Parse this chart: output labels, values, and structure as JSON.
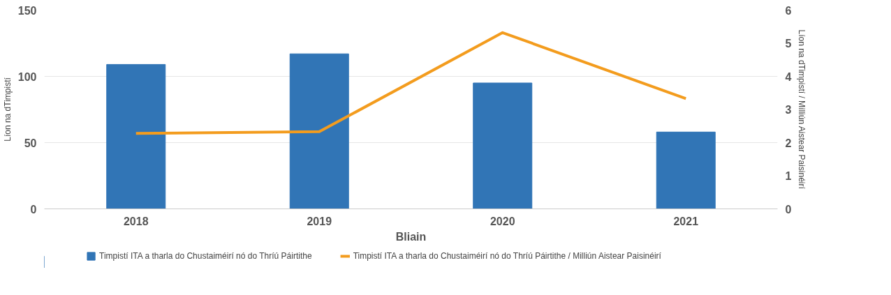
{
  "chart_data": {
    "type": "bar",
    "xlabel": "Bliain",
    "ylabel": "Líon na dTimpistí",
    "y2label": "Líon na dTimpistí / Milliún Aistear Paisinéirí",
    "categories": [
      "2018",
      "2019",
      "2020",
      "2021"
    ],
    "series": [
      {
        "name": "Timpistí ITA a tharla do Chustaiméirí nó do Thríú Páirtithe",
        "color": "#3175b6",
        "values": [
          109,
          117,
          95,
          58
        ]
      },
      {
        "name": "Timpistí ITA a tharla do Chustaiméirí nó do Thríú Páirtithe / Milliún Aistear Paisinéirí",
        "color": "#f39c1e",
        "type": "line",
        "axis": "y2",
        "marker": "none",
        "line_style": "solid",
        "values": [
          2.28,
          2.33,
          5.32,
          3.33
        ]
      }
    ],
    "ylim": [
      0,
      150
    ],
    "yticks": [
      0,
      50,
      100,
      150
    ],
    "y2lim": [
      0,
      6
    ],
    "y2ticks": [
      0,
      1,
      2,
      3,
      4,
      5,
      6
    ],
    "grid": "y",
    "legend": "bottom"
  }
}
